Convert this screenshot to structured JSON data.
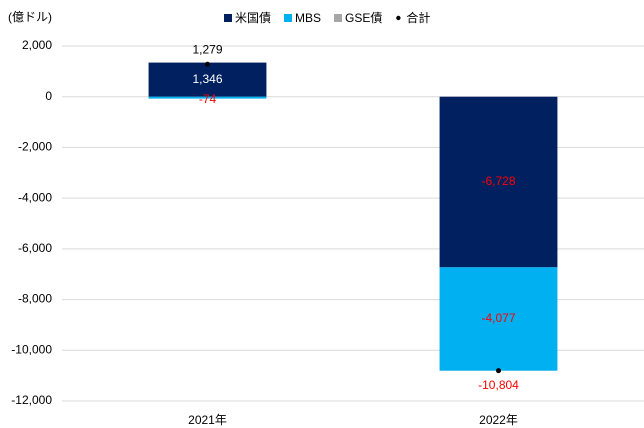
{
  "chart_data": {
    "type": "stacked_bar",
    "y_axis_label": "(億ドル)",
    "categories": [
      "2021年",
      "2022年"
    ],
    "series": [
      {
        "name": "米国債",
        "color": "#002060",
        "values": [
          1346,
          -6728
        ],
        "value_labels": [
          "1,346",
          "-6,728"
        ]
      },
      {
        "name": "MBS",
        "color": "#00b0f0",
        "values": [
          -74,
          -4077
        ],
        "value_labels": [
          "-74",
          "-4,077"
        ]
      },
      {
        "name": "GSE債",
        "color": "#a6a6a6",
        "values": [
          7,
          1
        ]
      }
    ],
    "total": {
      "name": "合計",
      "color": "#000000",
      "values": [
        1279,
        -10804
      ],
      "value_labels": [
        "1,279",
        "-10,804"
      ]
    },
    "negative_label_color": "#ff0000",
    "ylim": [
      -12000,
      2000
    ],
    "yticks": [
      {
        "value": -12000,
        "label": "-12,000"
      },
      {
        "value": -10000,
        "label": "-10,000"
      },
      {
        "value": -8000,
        "label": "-8,000"
      },
      {
        "value": -6000,
        "label": "-6,000"
      },
      {
        "value": -4000,
        "label": "-4,000"
      },
      {
        "value": -2000,
        "label": "-2,000"
      },
      0,
      {
        "value": 2000,
        "label": "2,000"
      }
    ],
    "grid": true,
    "legend": "top"
  }
}
